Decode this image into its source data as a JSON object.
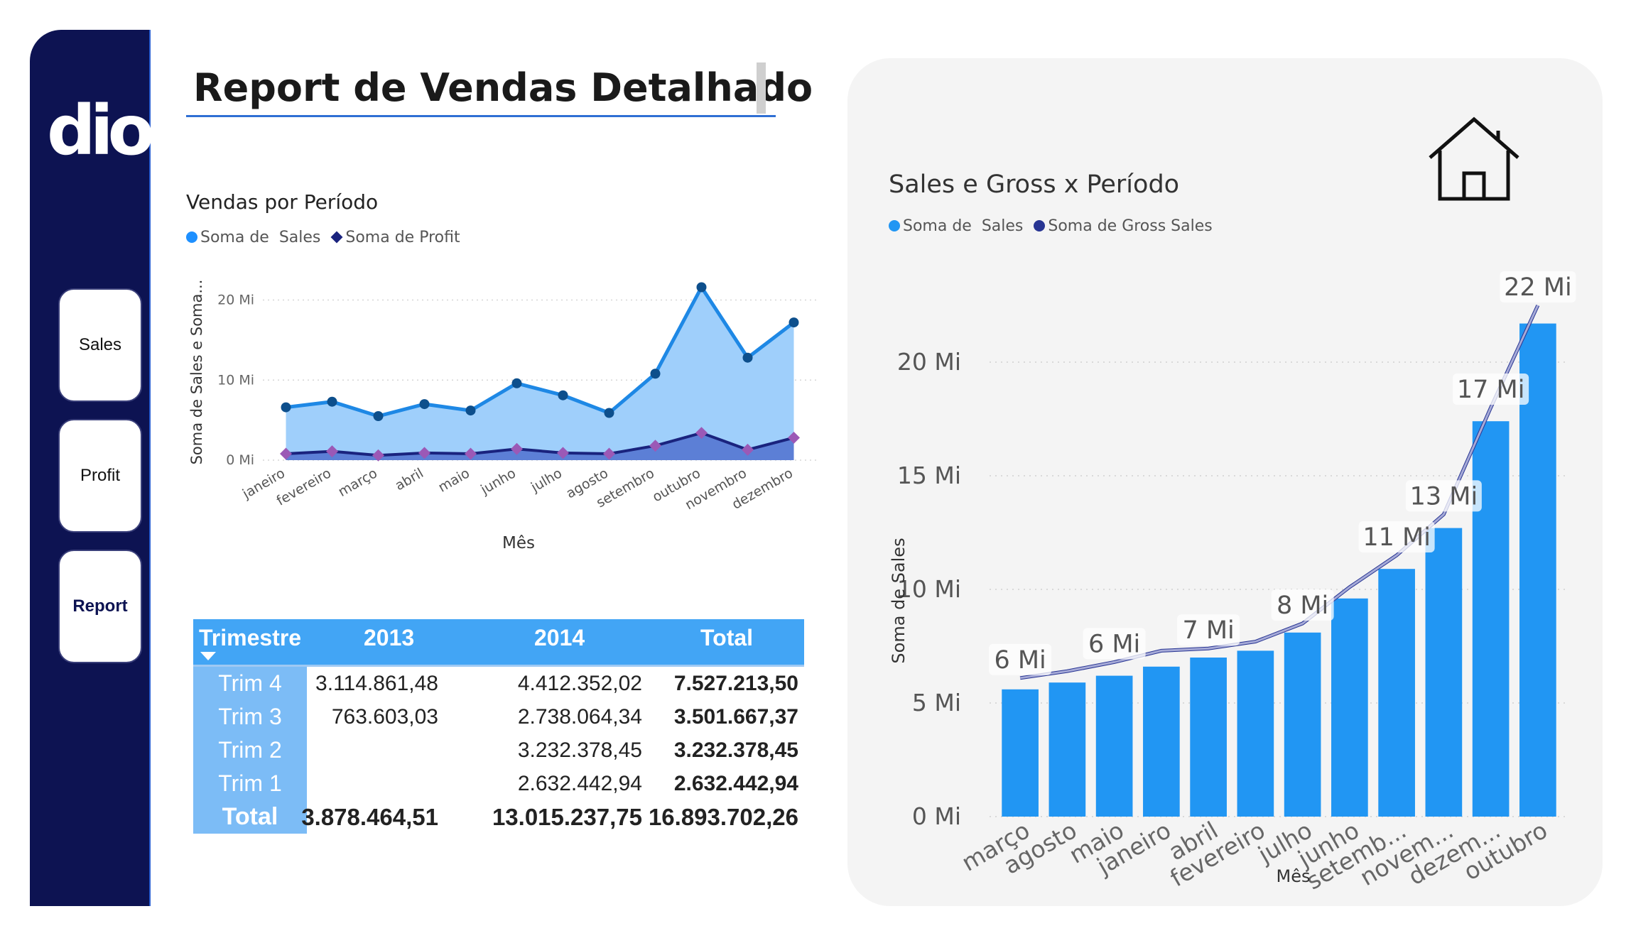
{
  "sidebar": {
    "logo_text": "dio.",
    "nav": [
      {
        "label": "Sales"
      },
      {
        "label": "Profit"
      },
      {
        "label": "Report"
      }
    ]
  },
  "header": {
    "title": "Report de Vendas Detalhado"
  },
  "area_chart": {
    "title": "Vendas por Período",
    "legend": [
      {
        "label": "Soma de  Sales",
        "color": "#1e90ff"
      },
      {
        "label": "Soma de Profit",
        "color": "#1a237e"
      }
    ]
  },
  "matrix": {
    "headers": [
      "Trimestre",
      "2013",
      "2014",
      "Total"
    ],
    "rows": [
      {
        "label": "Trim 4",
        "v2013": "3.114.861,48",
        "v2014": "4.412.352,02",
        "total": "7.527.213,50"
      },
      {
        "label": "Trim 3",
        "v2013": "763.603,03",
        "v2014": "2.738.064,34",
        "total": "3.501.667,37"
      },
      {
        "label": "Trim 2",
        "v2013": "",
        "v2014": "3.232.378,45",
        "total": "3.232.378,45"
      },
      {
        "label": "Trim 1",
        "v2013": "",
        "v2014": "2.632.442,94",
        "total": "2.632.442,94"
      }
    ],
    "total": {
      "label": "Total",
      "v2013": "3.878.464,51",
      "v2014": "13.015.237,75",
      "total": "16.893.702,26"
    }
  },
  "bar_chart": {
    "title": "Sales e Gross x Período",
    "legend": [
      {
        "label": "Soma de  Sales",
        "color": "#2196f3"
      },
      {
        "label": "Soma de Gross Sales",
        "color": "#283593"
      }
    ]
  },
  "chart_data": [
    {
      "type": "area",
      "title": "Vendas por Período",
      "xlabel": "Mês",
      "ylabel": "Soma de Sales e Soma...",
      "ylim": [
        0,
        22
      ],
      "yticks": [
        0,
        10,
        20
      ],
      "ytick_labels": [
        "0 Mi",
        "10 Mi",
        "20 Mi"
      ],
      "categories": [
        "janeiro",
        "fevereiro",
        "março",
        "abril",
        "maio",
        "junho",
        "julho",
        "agosto",
        "setembro",
        "outubro",
        "novembro",
        "dezembro"
      ],
      "series": [
        {
          "name": "Soma de  Sales",
          "color": "#1e88e5",
          "values": [
            6.6,
            7.3,
            5.5,
            7.0,
            6.2,
            9.6,
            8.1,
            5.9,
            10.8,
            21.6,
            12.8,
            17.2
          ]
        },
        {
          "name": "Soma de Profit",
          "color": "#1a237e",
          "values": [
            0.8,
            1.1,
            0.6,
            0.9,
            0.8,
            1.4,
            0.9,
            0.8,
            1.8,
            3.4,
            1.3,
            2.8
          ]
        }
      ],
      "grid": true,
      "legend": "top-left"
    },
    {
      "type": "bar",
      "title": "Sales e Gross x Período",
      "xlabel": "Mês",
      "ylabel": "Soma de Sales",
      "ylim": [
        0,
        24
      ],
      "yticks": [
        0,
        5,
        10,
        15,
        20
      ],
      "ytick_labels": [
        "0 Mi",
        "5 Mi",
        "10 Mi",
        "15 Mi",
        "20 Mi"
      ],
      "categories": [
        "março",
        "agosto",
        "maio",
        "janeiro",
        "abril",
        "fevereiro",
        "julho",
        "junho",
        "setemb...",
        "novem...",
        "dezem...",
        "outubro"
      ],
      "series": [
        {
          "name": "Soma de  Sales",
          "color": "#2196f3",
          "values": [
            5.6,
            5.9,
            6.2,
            6.6,
            7.0,
            7.3,
            8.1,
            9.6,
            10.9,
            12.7,
            17.4,
            21.7
          ]
        },
        {
          "name": "Soma de Gross Sales",
          "color": "#283593",
          "values": [
            6.1,
            6.4,
            6.8,
            7.3,
            7.4,
            7.7,
            8.5,
            10.1,
            11.5,
            13.3,
            18.0,
            22.5
          ]
        }
      ],
      "data_labels": [
        "6 Mi",
        "",
        "6 Mi",
        "",
        "7 Mi",
        "",
        "8 Mi",
        "",
        "11 Mi",
        "13 Mi",
        "17 Mi",
        "22 Mi"
      ],
      "grid": true,
      "legend": "top-left"
    }
  ]
}
